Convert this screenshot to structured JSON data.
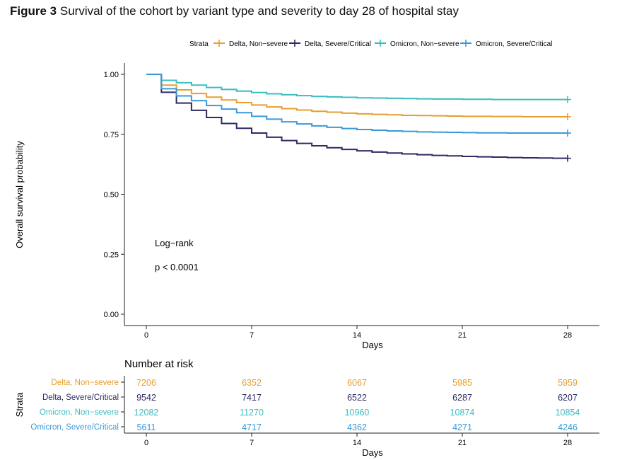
{
  "figure": {
    "label": "Figure 3",
    "title": "Survival of the cohort by variant type and severity to day 28 of hospital stay"
  },
  "chart_data": {
    "type": "line",
    "ylabel": "Overall survival probability",
    "xlabel": "Days",
    "xlim": [
      0,
      28
    ],
    "ylim": [
      0,
      1
    ],
    "xticks": [
      0,
      7,
      14,
      21,
      28
    ],
    "yticks": [
      "0.00",
      "0.25",
      "0.50",
      "0.75",
      "1.00"
    ],
    "legend": {
      "title": "Strata",
      "position": "top"
    },
    "annotation": {
      "line1": "Log−rank",
      "line2": "p < 0.0001"
    },
    "series": [
      {
        "name": "Delta, Non−severe",
        "color": "#E69F30",
        "x": [
          0,
          1,
          2,
          3,
          4,
          5,
          6,
          7,
          8,
          9,
          10,
          11,
          12,
          13,
          14,
          15,
          16,
          17,
          18,
          19,
          20,
          21,
          22,
          23,
          24,
          25,
          26,
          27,
          28
        ],
        "y": [
          1.0,
          0.955,
          0.935,
          0.92,
          0.905,
          0.893,
          0.882,
          0.872,
          0.864,
          0.857,
          0.851,
          0.846,
          0.842,
          0.838,
          0.835,
          0.833,
          0.831,
          0.829,
          0.828,
          0.827,
          0.826,
          0.825,
          0.825,
          0.824,
          0.824,
          0.823,
          0.823,
          0.823,
          0.823
        ]
      },
      {
        "name": "Delta, Severe/Critical",
        "color": "#2E2A64",
        "x": [
          0,
          1,
          2,
          3,
          4,
          5,
          6,
          7,
          8,
          9,
          10,
          11,
          12,
          13,
          14,
          15,
          16,
          17,
          18,
          19,
          20,
          21,
          22,
          23,
          24,
          25,
          26,
          27,
          28
        ],
        "y": [
          1.0,
          0.925,
          0.88,
          0.85,
          0.82,
          0.795,
          0.775,
          0.755,
          0.738,
          0.724,
          0.712,
          0.702,
          0.694,
          0.687,
          0.681,
          0.676,
          0.672,
          0.668,
          0.665,
          0.662,
          0.66,
          0.658,
          0.656,
          0.655,
          0.653,
          0.652,
          0.651,
          0.65,
          0.65
        ]
      },
      {
        "name": "Omicron, Non−severe",
        "color": "#3BBDC0",
        "x": [
          0,
          1,
          2,
          3,
          4,
          5,
          6,
          7,
          8,
          9,
          10,
          11,
          12,
          13,
          14,
          15,
          16,
          17,
          18,
          19,
          20,
          21,
          22,
          23,
          24,
          25,
          26,
          27,
          28
        ],
        "y": [
          1.0,
          0.975,
          0.965,
          0.955,
          0.945,
          0.937,
          0.93,
          0.924,
          0.919,
          0.915,
          0.911,
          0.908,
          0.906,
          0.904,
          0.902,
          0.901,
          0.9,
          0.899,
          0.898,
          0.897,
          0.897,
          0.896,
          0.896,
          0.895,
          0.895,
          0.895,
          0.895,
          0.895,
          0.895
        ]
      },
      {
        "name": "Omicron, Severe/Critical",
        "color": "#3A9AD8",
        "x": [
          0,
          1,
          2,
          3,
          4,
          5,
          6,
          7,
          8,
          9,
          10,
          11,
          12,
          13,
          14,
          15,
          16,
          17,
          18,
          19,
          20,
          21,
          22,
          23,
          24,
          25,
          26,
          27,
          28
        ],
        "y": [
          1.0,
          0.94,
          0.91,
          0.89,
          0.87,
          0.855,
          0.84,
          0.825,
          0.813,
          0.802,
          0.793,
          0.785,
          0.779,
          0.774,
          0.77,
          0.767,
          0.764,
          0.762,
          0.76,
          0.759,
          0.758,
          0.757,
          0.756,
          0.756,
          0.755,
          0.755,
          0.755,
          0.755,
          0.755
        ]
      }
    ]
  },
  "risk_table": {
    "title": "Number at risk",
    "ylabel": "Strata",
    "xlabel": "Days",
    "xticks": [
      0,
      7,
      14,
      21,
      28
    ],
    "rows": [
      {
        "name": "Delta, Non−severe",
        "color": "#E69F30",
        "values": [
          "7206",
          "6352",
          "6067",
          "5985",
          "5959"
        ]
      },
      {
        "name": "Delta, Severe/Critical",
        "color": "#2E2A64",
        "values": [
          "9542",
          "7417",
          "6522",
          "6287",
          "6207"
        ]
      },
      {
        "name": "Omicron, Non−severe",
        "color": "#3BBDC0",
        "values": [
          "12082",
          "11270",
          "10960",
          "10874",
          "10854"
        ]
      },
      {
        "name": "Omicron, Severe/Critical",
        "color": "#3A9AD8",
        "values": [
          "5611",
          "4717",
          "4362",
          "4271",
          "4246"
        ]
      }
    ]
  }
}
